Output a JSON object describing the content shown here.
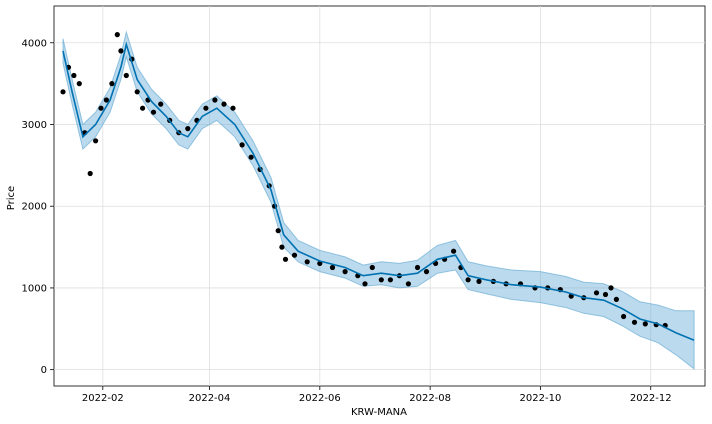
{
  "chart_data": {
    "type": "line",
    "title": "",
    "xlabel": "KRW-MANA",
    "ylabel": "Price",
    "x_tick_labels": [
      "2022-02",
      "2022-04",
      "2022-06",
      "2022-08",
      "2022-10",
      "2022-12"
    ],
    "x_ticks": [
      "2022-02-01",
      "2022-04-01",
      "2022-06-01",
      "2022-08-01",
      "2022-10-01",
      "2022-12-01"
    ],
    "y_ticks": [
      0,
      1000,
      2000,
      3000,
      4000
    ],
    "y_tick_labels": [
      "0",
      "1000",
      "2000",
      "3000",
      "4000"
    ],
    "xlim": [
      "2022-01-05",
      "2022-12-31"
    ],
    "ylim": [
      -200,
      4450
    ],
    "grid": true,
    "colors": {
      "forecast": "#0072B2",
      "interval": "#0072B2",
      "observed": "#000000"
    },
    "series": [
      {
        "type": "line",
        "x": [
          "2022-01-10",
          "2022-01-15",
          "2022-01-21",
          "2022-01-28",
          "2022-02-05",
          "2022-02-11",
          "2022-02-14",
          "2022-02-20",
          "2022-02-28",
          "2022-03-08",
          "2022-03-15",
          "2022-03-20",
          "2022-03-28",
          "2022-04-05",
          "2022-04-15",
          "2022-04-25",
          "2022-05-05",
          "2022-05-12",
          "2022-05-20",
          "2022-06-01",
          "2022-06-15",
          "2022-06-25",
          "2022-07-05",
          "2022-07-15",
          "2022-07-25",
          "2022-08-05",
          "2022-08-15",
          "2022-08-22",
          "2022-09-01",
          "2022-09-15",
          "2022-10-01",
          "2022-10-15",
          "2022-10-25",
          "2022-11-05",
          "2022-11-15",
          "2022-11-25",
          "2022-12-05",
          "2022-12-15",
          "2022-12-25"
        ],
        "y": [
          3900,
          3400,
          2850,
          3000,
          3300,
          3700,
          3980,
          3550,
          3280,
          3100,
          2900,
          2850,
          3100,
          3200,
          3000,
          2650,
          2200,
          1650,
          1450,
          1330,
          1250,
          1150,
          1180,
          1150,
          1180,
          1350,
          1400,
          1150,
          1100,
          1040,
          1010,
          950,
          880,
          850,
          750,
          620,
          560,
          450,
          360
        ],
        "lower": [
          3750,
          3250,
          2700,
          2850,
          3150,
          3550,
          3830,
          3400,
          3130,
          2950,
          2750,
          2700,
          2950,
          3050,
          2850,
          2500,
          2050,
          1500,
          1320,
          1200,
          1120,
          1020,
          1040,
          1000,
          1020,
          1180,
          1220,
          980,
          930,
          860,
          820,
          760,
          690,
          650,
          540,
          410,
          330,
          180,
          10
        ],
        "upper": [
          4050,
          3550,
          3000,
          3150,
          3450,
          3850,
          4130,
          3700,
          3430,
          3250,
          3050,
          3000,
          3250,
          3350,
          3150,
          2800,
          2350,
          1800,
          1580,
          1460,
          1380,
          1280,
          1320,
          1300,
          1340,
          1520,
          1580,
          1320,
          1270,
          1220,
          1200,
          1140,
          1070,
          1050,
          960,
          830,
          790,
          720,
          720
        ]
      }
    ],
    "observed": {
      "x": [
        "2022-01-10",
        "2022-01-13",
        "2022-01-16",
        "2022-01-19",
        "2022-01-22",
        "2022-01-25",
        "2022-01-28",
        "2022-01-31",
        "2022-02-03",
        "2022-02-06",
        "2022-02-09",
        "2022-02-11",
        "2022-02-14",
        "2022-02-17",
        "2022-02-20",
        "2022-02-23",
        "2022-02-26",
        "2022-03-01",
        "2022-03-05",
        "2022-03-10",
        "2022-03-15",
        "2022-03-20",
        "2022-03-25",
        "2022-03-30",
        "2022-04-04",
        "2022-04-09",
        "2022-04-14",
        "2022-04-19",
        "2022-04-24",
        "2022-04-29",
        "2022-05-04",
        "2022-05-07",
        "2022-05-09",
        "2022-05-11",
        "2022-05-13",
        "2022-05-18",
        "2022-05-25",
        "2022-06-01",
        "2022-06-08",
        "2022-06-15",
        "2022-06-22",
        "2022-06-26",
        "2022-06-30",
        "2022-07-05",
        "2022-07-10",
        "2022-07-15",
        "2022-07-20",
        "2022-07-25",
        "2022-07-30",
        "2022-08-04",
        "2022-08-09",
        "2022-08-14",
        "2022-08-18",
        "2022-08-22",
        "2022-08-28",
        "2022-09-05",
        "2022-09-12",
        "2022-09-20",
        "2022-09-28",
        "2022-10-05",
        "2022-10-12",
        "2022-10-18",
        "2022-10-25",
        "2022-11-01",
        "2022-11-06",
        "2022-11-09",
        "2022-11-12",
        "2022-11-16",
        "2022-11-22",
        "2022-11-28",
        "2022-12-04",
        "2022-12-09"
      ],
      "y": [
        3400,
        3700,
        3600,
        3500,
        2900,
        2400,
        2800,
        3200,
        3300,
        3500,
        4100,
        3900,
        3600,
        3800,
        3400,
        3200,
        3300,
        3150,
        3250,
        3050,
        2900,
        2950,
        3050,
        3200,
        3300,
        3250,
        3200,
        2750,
        2600,
        2450,
        2250,
        2000,
        1700,
        1500,
        1350,
        1400,
        1320,
        1300,
        1250,
        1200,
        1150,
        1050,
        1250,
        1100,
        1100,
        1150,
        1050,
        1250,
        1200,
        1300,
        1350,
        1450,
        1250,
        1100,
        1080,
        1080,
        1050,
        1050,
        1000,
        1000,
        980,
        900,
        880,
        940,
        920,
        1000,
        860,
        650,
        580,
        560,
        550,
        540
      ]
    }
  }
}
